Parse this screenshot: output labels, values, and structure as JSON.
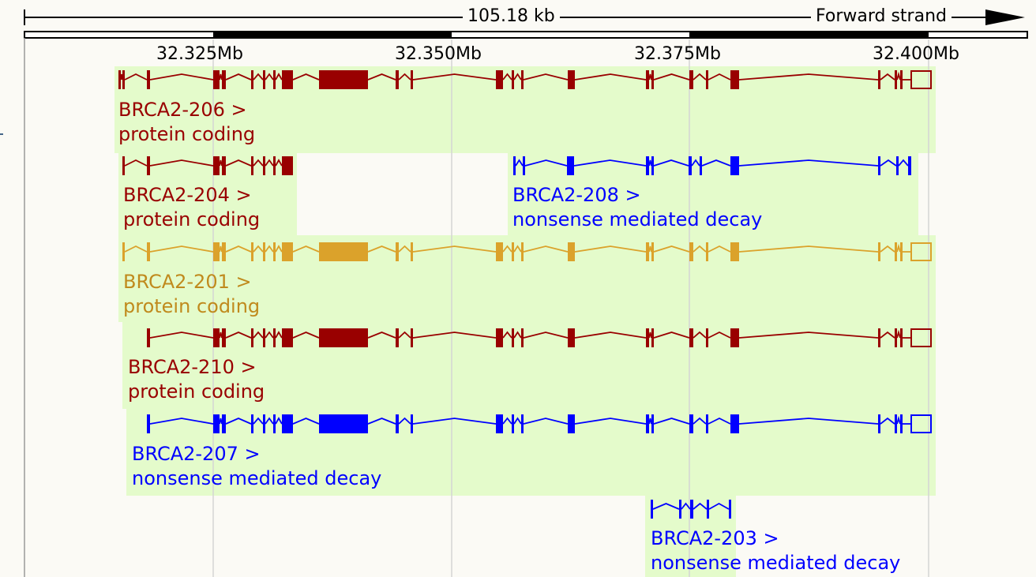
{
  "colors": {
    "protein_coding": "#990000",
    "nmd": "#0000ff",
    "highlighted": "#dba22b",
    "background": "#fbfaf5",
    "label_bg": "#e4fbcb"
  },
  "scale": {
    "length_label": "105.18 kb",
    "strand_label": "Forward strand",
    "tick_labels": [
      "32.325Mb",
      "32.350Mb",
      "32.375Mb",
      "32.400Mb"
    ]
  },
  "transcripts": [
    {
      "name": "BRCA2-206 >",
      "biotype": "protein coding",
      "color": "#990000"
    },
    {
      "name": "BRCA2-204 >",
      "biotype": "protein coding",
      "color": "#990000"
    },
    {
      "name": "BRCA2-208 >",
      "biotype": "nonsense mediated decay",
      "color": "#0000ff"
    },
    {
      "name": "BRCA2-201 >",
      "biotype": "protein coding",
      "color": "#dba22b"
    },
    {
      "name": "BRCA2-210 >",
      "biotype": "protein coding",
      "color": "#990000"
    },
    {
      "name": "BRCA2-207 >",
      "biotype": "nonsense mediated decay",
      "color": "#0000ff"
    },
    {
      "name": "BRCA2-203 >",
      "biotype": "nonsense mediated decay",
      "color": "#0000ff"
    }
  ]
}
